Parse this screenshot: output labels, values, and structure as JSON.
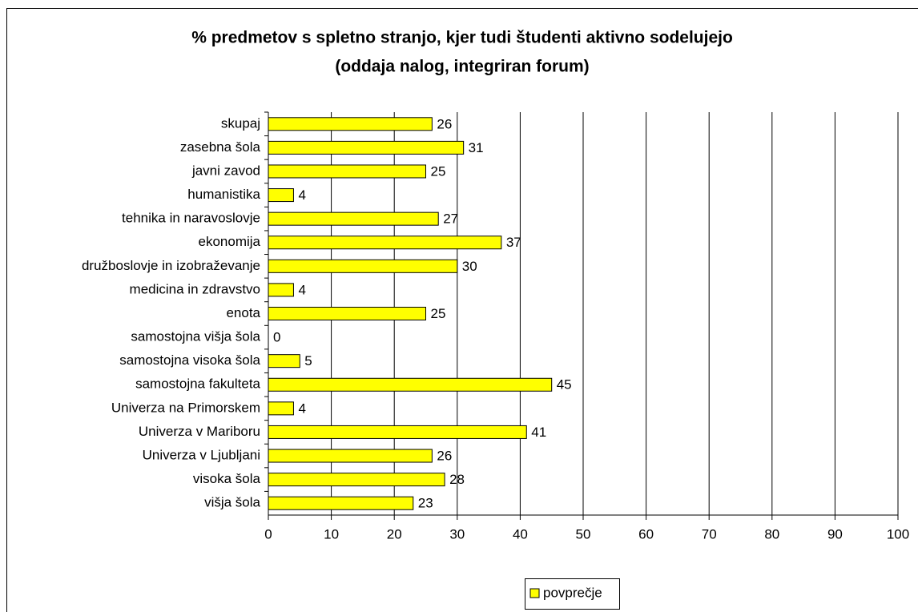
{
  "chart_data": {
    "type": "bar",
    "orientation": "horizontal",
    "title": [
      "% predmetov s spletno stranjo, kjer tudi študenti aktivno sodelujejo",
      "(oddaja nalog, integriran forum)"
    ],
    "categories": [
      "skupaj",
      "zasebna šola",
      "javni zavod",
      "humanistika",
      "tehnika in naravoslovje",
      "ekonomija",
      "družboslovje in izobraževanje",
      "medicina in zdravstvo",
      "enota",
      "samostojna višja šola",
      "samostojna visoka šola",
      "samostojna fakulteta",
      "Univerza na Primorskem",
      "Univerza v Mariboru",
      "Univerza v Ljubljani",
      "visoka šola",
      "višja šola"
    ],
    "series": [
      {
        "name": "povprečje",
        "color": "#ffff00",
        "values": [
          26,
          31,
          25,
          4,
          27,
          37,
          30,
          4,
          25,
          0,
          5,
          45,
          4,
          41,
          26,
          28,
          23
        ]
      }
    ],
    "xlim": [
      0,
      100
    ],
    "xticks": [
      0,
      10,
      20,
      30,
      40,
      50,
      60,
      70,
      80,
      90,
      100
    ],
    "grid": true,
    "legend": "bottom"
  }
}
